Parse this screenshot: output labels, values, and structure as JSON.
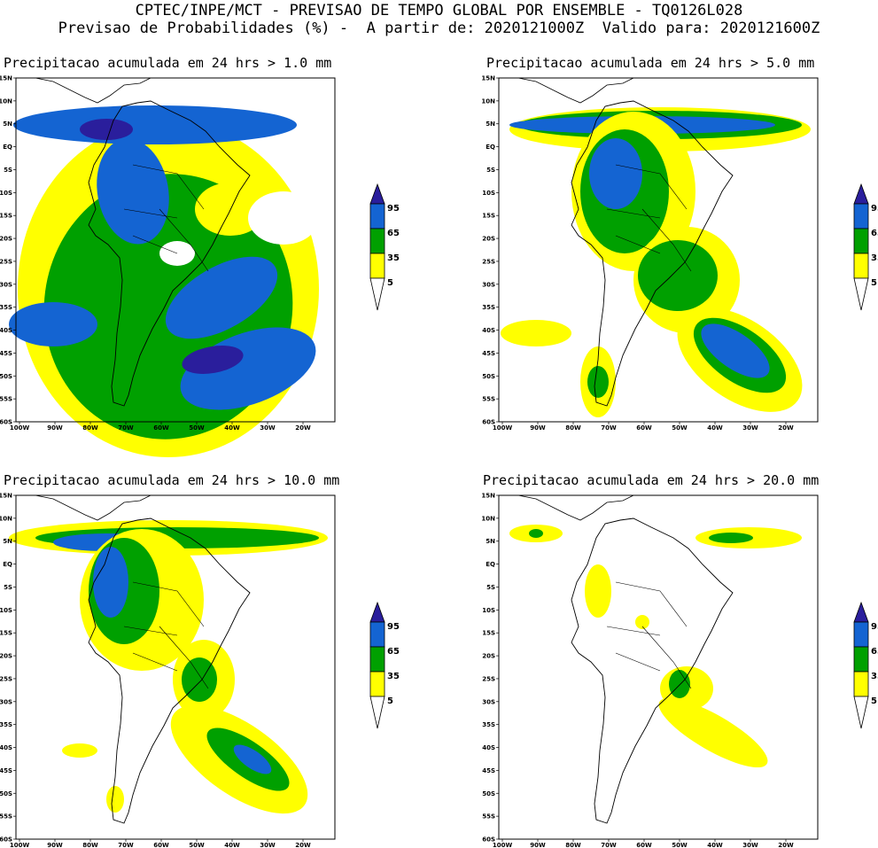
{
  "header": {
    "line1": "CPTEC/INPE/MCT - PREVISAO DE TEMPO GLOBAL POR ENSEMBLE - TQ0126L028",
    "line2": "Previsao de Probabilidades (%) -  A partir de: 2020121000Z  Valido para: 2020121600Z"
  },
  "axes": {
    "lat_labels": [
      "15N",
      "10N",
      "5N",
      "EQ",
      "5S",
      "10S",
      "15S",
      "20S",
      "25S",
      "30S",
      "35S",
      "40S",
      "45S",
      "50S",
      "55S",
      "60S"
    ],
    "lon_labels": [
      "100W",
      "90W",
      "80W",
      "70W",
      "60W",
      "50W",
      "40W",
      "30W",
      "20W"
    ]
  },
  "legend": {
    "labels": [
      "95",
      "65",
      "35",
      "5"
    ],
    "colors": {
      "lt5": "#ffffff",
      "p5": "#ffff00",
      "p35": "#00a000",
      "p65": "#1464d2",
      "p95": "#2a1e9c"
    }
  },
  "panels": [
    {
      "title": "Precipitacao acumulada em 24 hrs > 1.0 mm"
    },
    {
      "title": "Precipitacao acumulada em 24 hrs > 5.0 mm"
    },
    {
      "title": "Precipitacao acumulada em 24 hrs > 10.0 mm"
    },
    {
      "title": "Precipitacao acumulada em 24 hrs > 20.0 mm"
    }
  ]
}
